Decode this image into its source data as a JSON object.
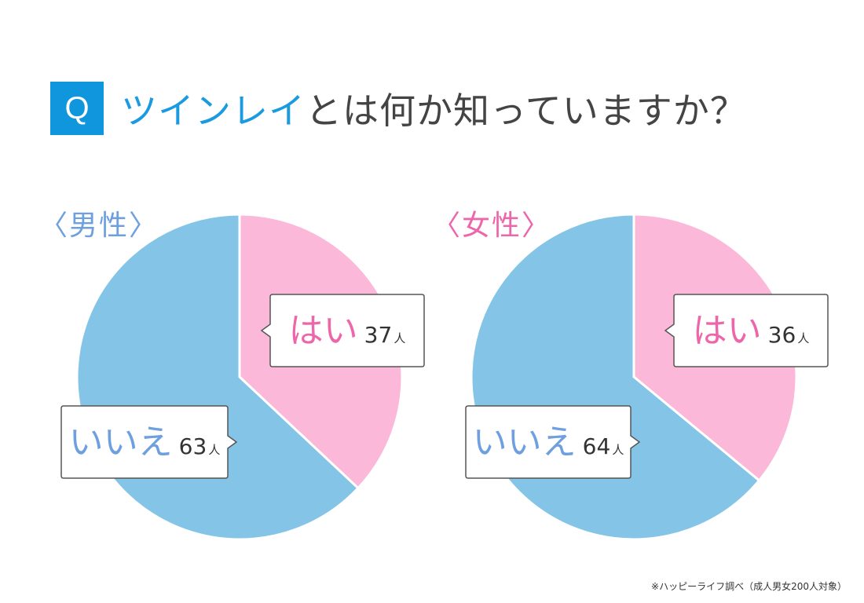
{
  "title": {
    "badge": "Q",
    "highlight": "ツインレイ",
    "rest": "とは何か知っていますか？"
  },
  "colors": {
    "yes": "#fbb8d9",
    "no": "#84c5e7",
    "yes_text": "#ee66aa",
    "no_text": "#6e9fdf",
    "badge": "#0f96dc"
  },
  "chart_data": [
    {
      "type": "pie",
      "title": "〈男性〉",
      "categories": [
        "はい",
        "いいえ"
      ],
      "values": [
        37,
        63
      ],
      "unit": "人"
    },
    {
      "type": "pie",
      "title": "〈女性〉",
      "categories": [
        "はい",
        "いいえ"
      ],
      "values": [
        36,
        64
      ],
      "unit": "人"
    }
  ],
  "source_note": "※ハッピーライフ調べ（成人男女200人対象）"
}
